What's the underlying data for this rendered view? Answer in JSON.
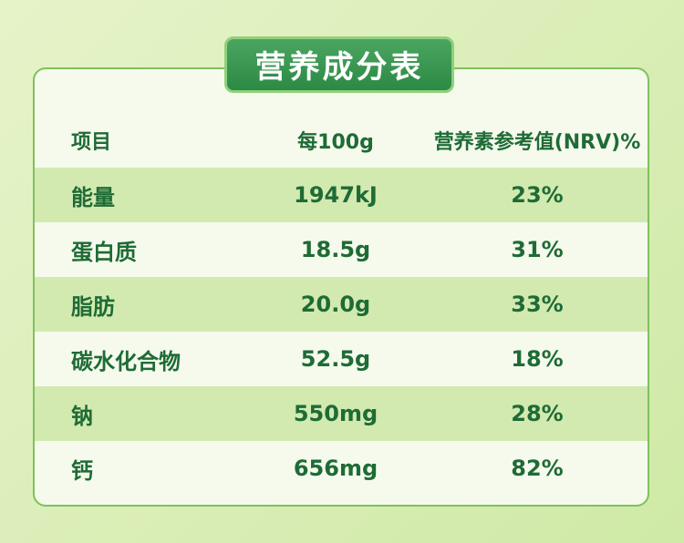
{
  "header": {
    "title": "营养成分表"
  },
  "table": {
    "columns": [
      "项目",
      "每100g",
      "营养素参考值(NRV)%"
    ],
    "rows": [
      [
        "能量",
        "1947kJ",
        "23%"
      ],
      [
        "蛋白质",
        "18.5g",
        "31%"
      ],
      [
        "脂肪",
        "20.0g",
        "33%"
      ],
      [
        "碳水化合物",
        "52.5g",
        "18%"
      ],
      [
        "钠",
        "550mg",
        "28%"
      ],
      [
        "钙",
        "656mg",
        "82%"
      ]
    ]
  }
}
